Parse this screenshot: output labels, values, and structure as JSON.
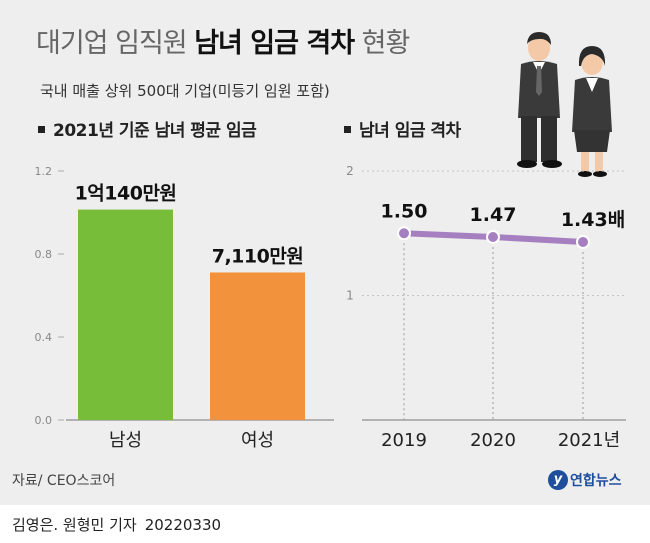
{
  "header": {
    "title_light": "대기업 임직원",
    "title_bold": "남녀 임금 격차",
    "title_tail": "현황",
    "subtitle": "국내 매출 상위 500대 기업(미등기 임원 포함)"
  },
  "colors": {
    "male": "#77bd3a",
    "female": "#f2923c",
    "line": "#a57fbf",
    "accent": "#1f4e9c"
  },
  "chart_data": [
    {
      "type": "bar",
      "title": "2021년 기준 남녀 평균 임금",
      "categories": [
        "남성",
        "여성"
      ],
      "values": [
        1.014,
        0.711
      ],
      "data_labels": [
        "1억140만원",
        "7,110만원"
      ],
      "ylim": [
        0,
        1.2
      ],
      "yticks": [
        "0.0",
        "0.4",
        "0.8",
        "1.2"
      ]
    },
    {
      "type": "line",
      "title": "남녀 임금 격차",
      "x": [
        "2019",
        "2020",
        "2021년"
      ],
      "values": [
        1.5,
        1.47,
        1.43
      ],
      "data_labels": [
        "1.50",
        "1.47",
        "1.43배"
      ],
      "ylim": [
        0,
        2
      ],
      "yticks": [
        "1",
        "2"
      ],
      "grid": true
    }
  ],
  "footer": {
    "source": "자료/ CEO스코어",
    "logo_name": "연합뉴스",
    "byline": "김영은. 원형민 기자",
    "date": "20220330"
  }
}
